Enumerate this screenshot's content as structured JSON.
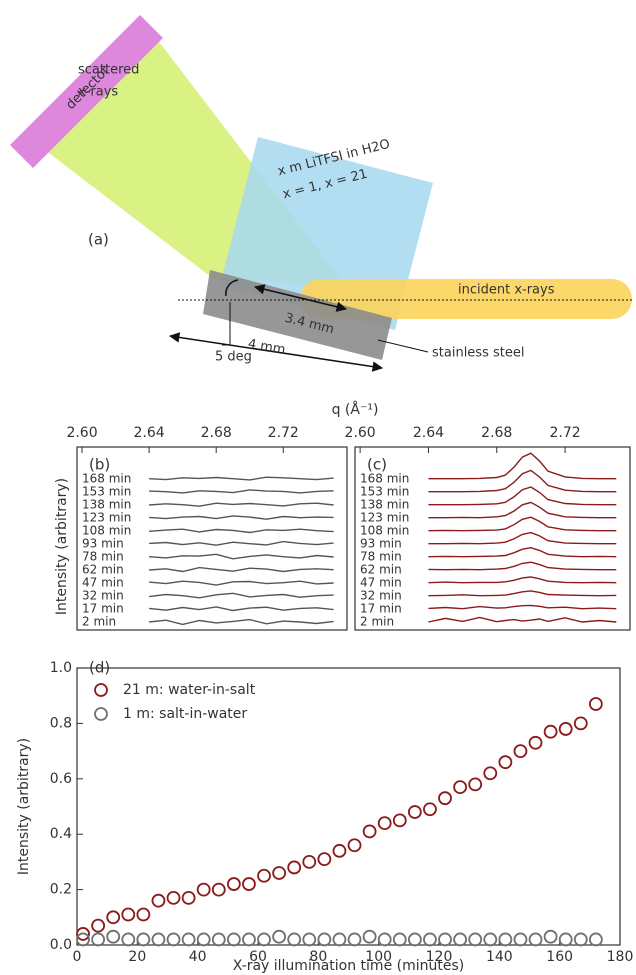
{
  "diagram": {
    "detector": "detector",
    "scattered_label": [
      "scattered",
      "x-rays"
    ],
    "solution_label": [
      "x m LiTFSI in H2O",
      "x = 1, x = 21"
    ],
    "panel": "(a)",
    "incident": "incident x-rays",
    "length_inner": "3.4 mm",
    "length_outer": "4 mm",
    "angle": "5 deg",
    "substrate": "stainless steel"
  },
  "chart_data": [
    {
      "type": "line",
      "annotation": "(b)",
      "xlabel": "q (Å⁻¹)",
      "ylabel": "Intensity (arbitrary)",
      "xlim": [
        2.597,
        2.758
      ],
      "xticks": [
        {
          "value": 2.6,
          "label": "2.60"
        },
        2.64,
        2.68,
        2.72
      ],
      "x": [
        2.64,
        2.65,
        2.66,
        2.67,
        2.68,
        2.69,
        2.7,
        2.71,
        2.72,
        2.73,
        2.74,
        2.75
      ],
      "series": [
        {
          "name": "2 min",
          "color": "#555555",
          "values": [
            0,
            0.06,
            -0.08,
            0.05,
            -0.03,
            0.02,
            0.08,
            -0.06,
            0.03,
            0,
            -0.05,
            0.02
          ]
        },
        {
          "name": "17 min",
          "color": "#555555",
          "values": [
            0.02,
            -0.04,
            0.05,
            -0.02,
            0.07,
            -0.05,
            0.03,
            0.06,
            -0.04,
            0.02,
            0.04,
            -0.02
          ]
        },
        {
          "name": "32 min",
          "color": "#555555",
          "values": [
            -0.02,
            0.05,
            0.01,
            -0.06,
            0.04,
            0.09,
            -0.03,
            0.02,
            0.05,
            -0.04,
            0.01,
            0.03
          ]
        },
        {
          "name": "47 min",
          "color": "#555555",
          "values": [
            0.03,
            -0.02,
            0.06,
            0.02,
            -0.07,
            0.04,
            0.05,
            -0.02,
            0.01,
            0.06,
            -0.03,
            0
          ]
        },
        {
          "name": "62 min",
          "color": "#555555",
          "values": [
            0,
            0.04,
            -0.05,
            0.08,
            0.02,
            -0.04,
            0.06,
            0.03,
            -0.05,
            0.02,
            0.04,
            0.01
          ]
        },
        {
          "name": "78 min",
          "color": "#555555",
          "values": [
            0.01,
            -0.03,
            0.04,
            0.03,
            0.09,
            -0.06,
            0.02,
            0.07,
            0.01,
            -0.03,
            0.05,
            0
          ]
        },
        {
          "name": "93 min",
          "color": "#555555",
          "values": [
            0.02,
            0.05,
            -0.02,
            0.04,
            -0.04,
            0.06,
            0.01,
            -0.03,
            0.08,
            0.02,
            -0.02,
            0.03
          ]
        },
        {
          "name": "108 min",
          "color": "#555555",
          "values": [
            -0.01,
            0.03,
            0.06,
            -0.03,
            0.05,
            0.02,
            -0.05,
            0.04,
            0.02,
            0.06,
            0.01,
            -0.02
          ]
        },
        {
          "name": "123 min",
          "color": "#555555",
          "values": [
            0.02,
            -0.02,
            0.03,
            0.05,
            -0.02,
            0.07,
            0.03,
            -0.04,
            0.05,
            0.01,
            0.03,
            0.02
          ]
        },
        {
          "name": "138 min",
          "color": "#555555",
          "values": [
            0,
            0.04,
            0.01,
            -0.04,
            0.06,
            0.02,
            0.05,
            0.01,
            -0.03,
            0.04,
            0.06,
            0
          ]
        },
        {
          "name": "153 min",
          "color": "#555555",
          "values": [
            0.03,
            0.01,
            -0.03,
            0.04,
            0.02,
            -0.02,
            0.07,
            0.03,
            0.02,
            -0.03,
            0.02,
            0.04
          ]
        },
        {
          "name": "168 min",
          "color": "#555555",
          "values": [
            0.01,
            -0.02,
            0.04,
            0.02,
            0.05,
            0.01,
            -0.03,
            0.06,
            0.04,
            0.01,
            -0.02,
            0.03
          ]
        }
      ]
    },
    {
      "type": "line",
      "annotation": "(c)",
      "xlim": [
        2.597,
        2.758
      ],
      "xticks": [
        {
          "value": 2.6,
          "label": "2.60"
        },
        2.64,
        2.68,
        2.72
      ],
      "x": [
        2.64,
        2.65,
        2.66,
        2.67,
        2.68,
        2.685,
        2.69,
        2.695,
        2.7,
        2.705,
        2.71,
        2.72,
        2.73,
        2.74,
        2.75
      ],
      "series": [
        {
          "name": "2 min",
          "color": "#8b1a1a",
          "values": [
            0,
            0.12,
            0.02,
            0.15,
            0.01,
            0.05,
            0.08,
            0.03,
            0.06,
            0.1,
            0.02,
            0.14,
            0,
            0.05,
            0
          ]
        },
        {
          "name": "17 min",
          "color": "#8b1a1a",
          "values": [
            0.02,
            0.05,
            0.01,
            0.08,
            0.03,
            0.04,
            0.08,
            0.11,
            0.12,
            0.09,
            0.04,
            0.06,
            0.01,
            0.03,
            0.01
          ]
        },
        {
          "name": "32 min",
          "color": "#8b1a1a",
          "values": [
            0.01,
            0.02,
            0.04,
            0.01,
            0.02,
            0.03,
            0.08,
            0.14,
            0.17,
            0.12,
            0.05,
            0.03,
            0.02,
            0.01,
            0.02
          ]
        },
        {
          "name": "47 min",
          "color": "#8b1a1a",
          "values": [
            0.01,
            0.03,
            0.01,
            0.02,
            0.02,
            0.04,
            0.09,
            0.17,
            0.2,
            0.14,
            0.06,
            0.02,
            0.01,
            0.02,
            0.01
          ]
        },
        {
          "name": "62 min",
          "color": "#8b1a1a",
          "values": [
            0.02,
            0.01,
            0.02,
            0.01,
            0.03,
            0.05,
            0.12,
            0.22,
            0.26,
            0.18,
            0.08,
            0.03,
            0.02,
            0.01,
            0.01
          ]
        },
        {
          "name": "78 min",
          "color": "#8b1a1a",
          "values": [
            0.01,
            0.02,
            0.01,
            0.02,
            0.03,
            0.05,
            0.14,
            0.26,
            0.31,
            0.22,
            0.09,
            0.03,
            0.01,
            0.02,
            0.01
          ]
        },
        {
          "name": "93 min",
          "color": "#8b1a1a",
          "values": [
            0.01,
            0.01,
            0.02,
            0.01,
            0.03,
            0.06,
            0.17,
            0.32,
            0.38,
            0.27,
            0.11,
            0.03,
            0.02,
            0.01,
            0.01
          ]
        },
        {
          "name": "108 min",
          "color": "#8b1a1a",
          "values": [
            0.01,
            0.02,
            0.01,
            0.02,
            0.03,
            0.07,
            0.21,
            0.39,
            0.46,
            0.32,
            0.14,
            0.04,
            0.02,
            0.01,
            0.01
          ]
        },
        {
          "name": "123 min",
          "color": "#8b1a1a",
          "values": [
            0.01,
            0.01,
            0.02,
            0.01,
            0.04,
            0.08,
            0.23,
            0.44,
            0.52,
            0.36,
            0.16,
            0.04,
            0.02,
            0.01,
            0.01
          ]
        },
        {
          "name": "138 min",
          "color": "#8b1a1a",
          "values": [
            0.01,
            0.01,
            0.01,
            0.02,
            0.04,
            0.09,
            0.27,
            0.51,
            0.6,
            0.42,
            0.18,
            0.05,
            0.02,
            0.01,
            0.01
          ]
        },
        {
          "name": "153 min",
          "color": "#8b1a1a",
          "values": [
            0.01,
            0.01,
            0.01,
            0.02,
            0.05,
            0.11,
            0.32,
            0.61,
            0.72,
            0.5,
            0.22,
            0.06,
            0.02,
            0.01,
            0.01
          ]
        },
        {
          "name": "168 min",
          "color": "#8b1a1a",
          "values": [
            0.01,
            0.01,
            0.01,
            0.02,
            0.05,
            0.13,
            0.39,
            0.73,
            0.86,
            0.6,
            0.26,
            0.07,
            0.02,
            0.01,
            0.01
          ]
        }
      ]
    },
    {
      "type": "scatter",
      "annotation": "(d)",
      "xlabel": "X-ray illumination time (minutes)",
      "ylabel": "Intensity (arbitrary)",
      "xlim": [
        0,
        180
      ],
      "xticks": [
        0,
        20,
        40,
        60,
        80,
        100,
        120,
        140,
        160,
        180
      ],
      "ylim": [
        0,
        1
      ],
      "yticks": [
        {
          "value": 0,
          "label": "0.0"
        },
        {
          "value": 0.2,
          "label": "0.2"
        },
        {
          "value": 0.4,
          "label": "0.4"
        },
        {
          "value": 0.6,
          "label": "0.6"
        },
        {
          "value": 0.8,
          "label": "0.8"
        },
        {
          "value": 1,
          "label": "1.0"
        }
      ],
      "legend": "upper left",
      "x": [
        2,
        7,
        12,
        17,
        22,
        27,
        32,
        37,
        42,
        47,
        52,
        57,
        62,
        67,
        72,
        77,
        82,
        87,
        92,
        97,
        102,
        107,
        112,
        117,
        122,
        127,
        132,
        137,
        142,
        147,
        152,
        157,
        162,
        167,
        172
      ],
      "series": [
        {
          "name": "21 m: water-in-salt",
          "color": "#8b1a1a",
          "values": [
            0.04,
            0.07,
            0.1,
            0.11,
            0.11,
            0.16,
            0.17,
            0.17,
            0.2,
            0.2,
            0.22,
            0.22,
            0.25,
            0.26,
            0.28,
            0.3,
            0.31,
            0.34,
            0.36,
            0.41,
            0.44,
            0.45,
            0.48,
            0.49,
            0.53,
            0.57,
            0.58,
            0.62,
            0.66,
            0.7,
            0.73,
            0.77,
            0.78,
            0.8,
            0.87
          ]
        },
        {
          "name": "1 m: salt-in-water",
          "color": "#707070",
          "values": [
            0.02,
            0.02,
            0.03,
            0.02,
            0.02,
            0.02,
            0.02,
            0.02,
            0.02,
            0.02,
            0.02,
            0.02,
            0.02,
            0.03,
            0.02,
            0.02,
            0.02,
            0.02,
            0.02,
            0.03,
            0.02,
            0.02,
            0.02,
            0.02,
            0.02,
            0.02,
            0.02,
            0.02,
            0.02,
            0.02,
            0.02,
            0.03,
            0.02,
            0.02,
            0.02
          ]
        }
      ]
    }
  ]
}
